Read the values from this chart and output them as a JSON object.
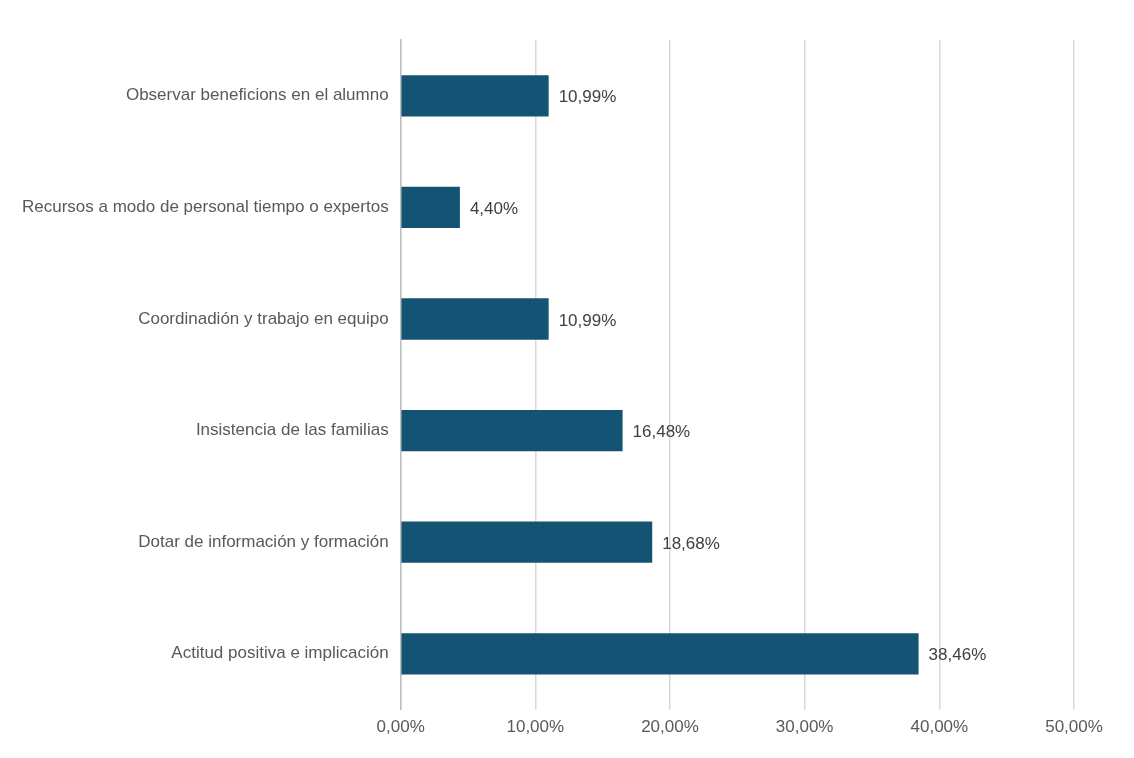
{
  "chart_data": {
    "type": "bar",
    "orientation": "horizontal",
    "categories": [
      "Observar beneficions en el alumno",
      "Recursos a modo de personal tiempo o expertos",
      "Coordinadión y trabajo en equipo",
      "Insistencia de las familias",
      "Dotar de información y formación",
      "Actitud positiva e implicación"
    ],
    "values": [
      10.99,
      4.4,
      10.99,
      16.48,
      18.68,
      38.46
    ],
    "value_labels": [
      "10,99%",
      "4,40%",
      "10,99%",
      "16,48%",
      "18,68%",
      "38,46%"
    ],
    "color": "#145373",
    "xlim": [
      0,
      50
    ],
    "xticks": [
      {
        "value": 0,
        "label": "0,00%"
      },
      {
        "value": 10,
        "label": "10,00%"
      },
      {
        "value": 20,
        "label": "20,00%"
      },
      {
        "value": 30,
        "label": "30,00%"
      },
      {
        "value": 40,
        "label": "40,00%"
      },
      {
        "value": 50,
        "label": "50,00%"
      }
    ],
    "grid": "x"
  }
}
